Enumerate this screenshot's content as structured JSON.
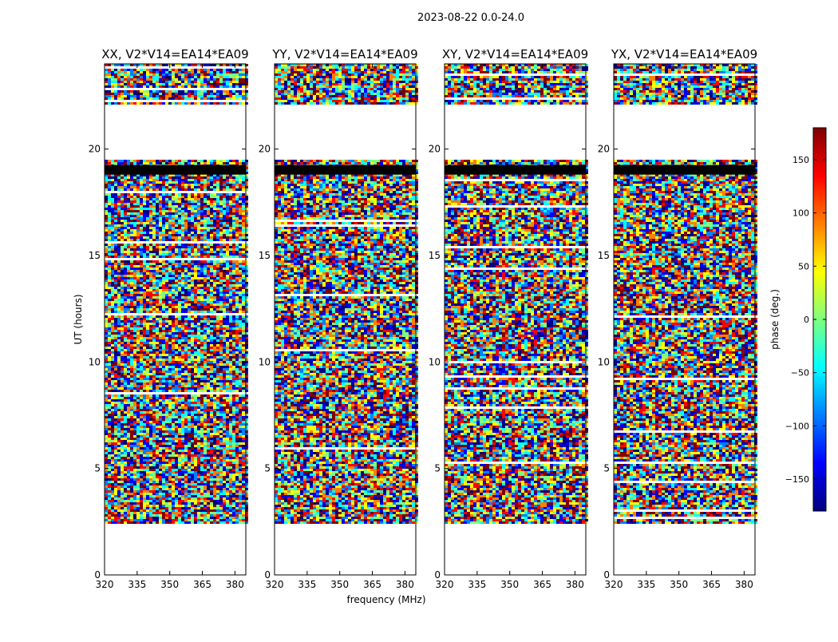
{
  "figure": {
    "suptitle": "2023-08-22 0.0-24.0"
  },
  "chart_data": {
    "type": "heatmap",
    "suptitle": "2023-08-22 0.0-24.0",
    "xlabel": "frequency (MHz)",
    "ylabel": "UT (hours)",
    "xlim": [
      320,
      385
    ],
    "ylim": [
      0,
      24
    ],
    "xticks": [
      320,
      335,
      350,
      365,
      380
    ],
    "yticks": [
      0,
      5,
      10,
      15,
      20
    ],
    "panels": [
      {
        "title": "XX, V2*V14=EA14*EA09",
        "key": "XX"
      },
      {
        "title": "YY, V2*V14=EA14*EA09",
        "key": "YY"
      },
      {
        "title": "XY, V2*V14=EA14*EA09",
        "key": "XY"
      },
      {
        "title": "YX, V2*V14=EA14*EA09",
        "key": "YX"
      }
    ],
    "data_ranges_ut": [
      [
        2.5,
        19.5
      ],
      [
        22.1,
        24.0
      ]
    ],
    "flagged_blocks_ut": [
      [
        18.8,
        19.25
      ]
    ],
    "colorbar": {
      "label": "phase (deg.)",
      "min": -180,
      "max": 180,
      "ticks": [
        -150,
        -100,
        -50,
        0,
        50,
        100,
        150
      ],
      "tick_labels": [
        "−150",
        "−100",
        "−50",
        "0",
        "50",
        "100",
        "150"
      ],
      "colormap": "jet",
      "colormap_stops": [
        "#00007f",
        "#0000ff",
        "#007fff",
        "#00ffff",
        "#7fff7f",
        "#ffff00",
        "#ff7f00",
        "#ff0000",
        "#7f0000"
      ]
    }
  }
}
